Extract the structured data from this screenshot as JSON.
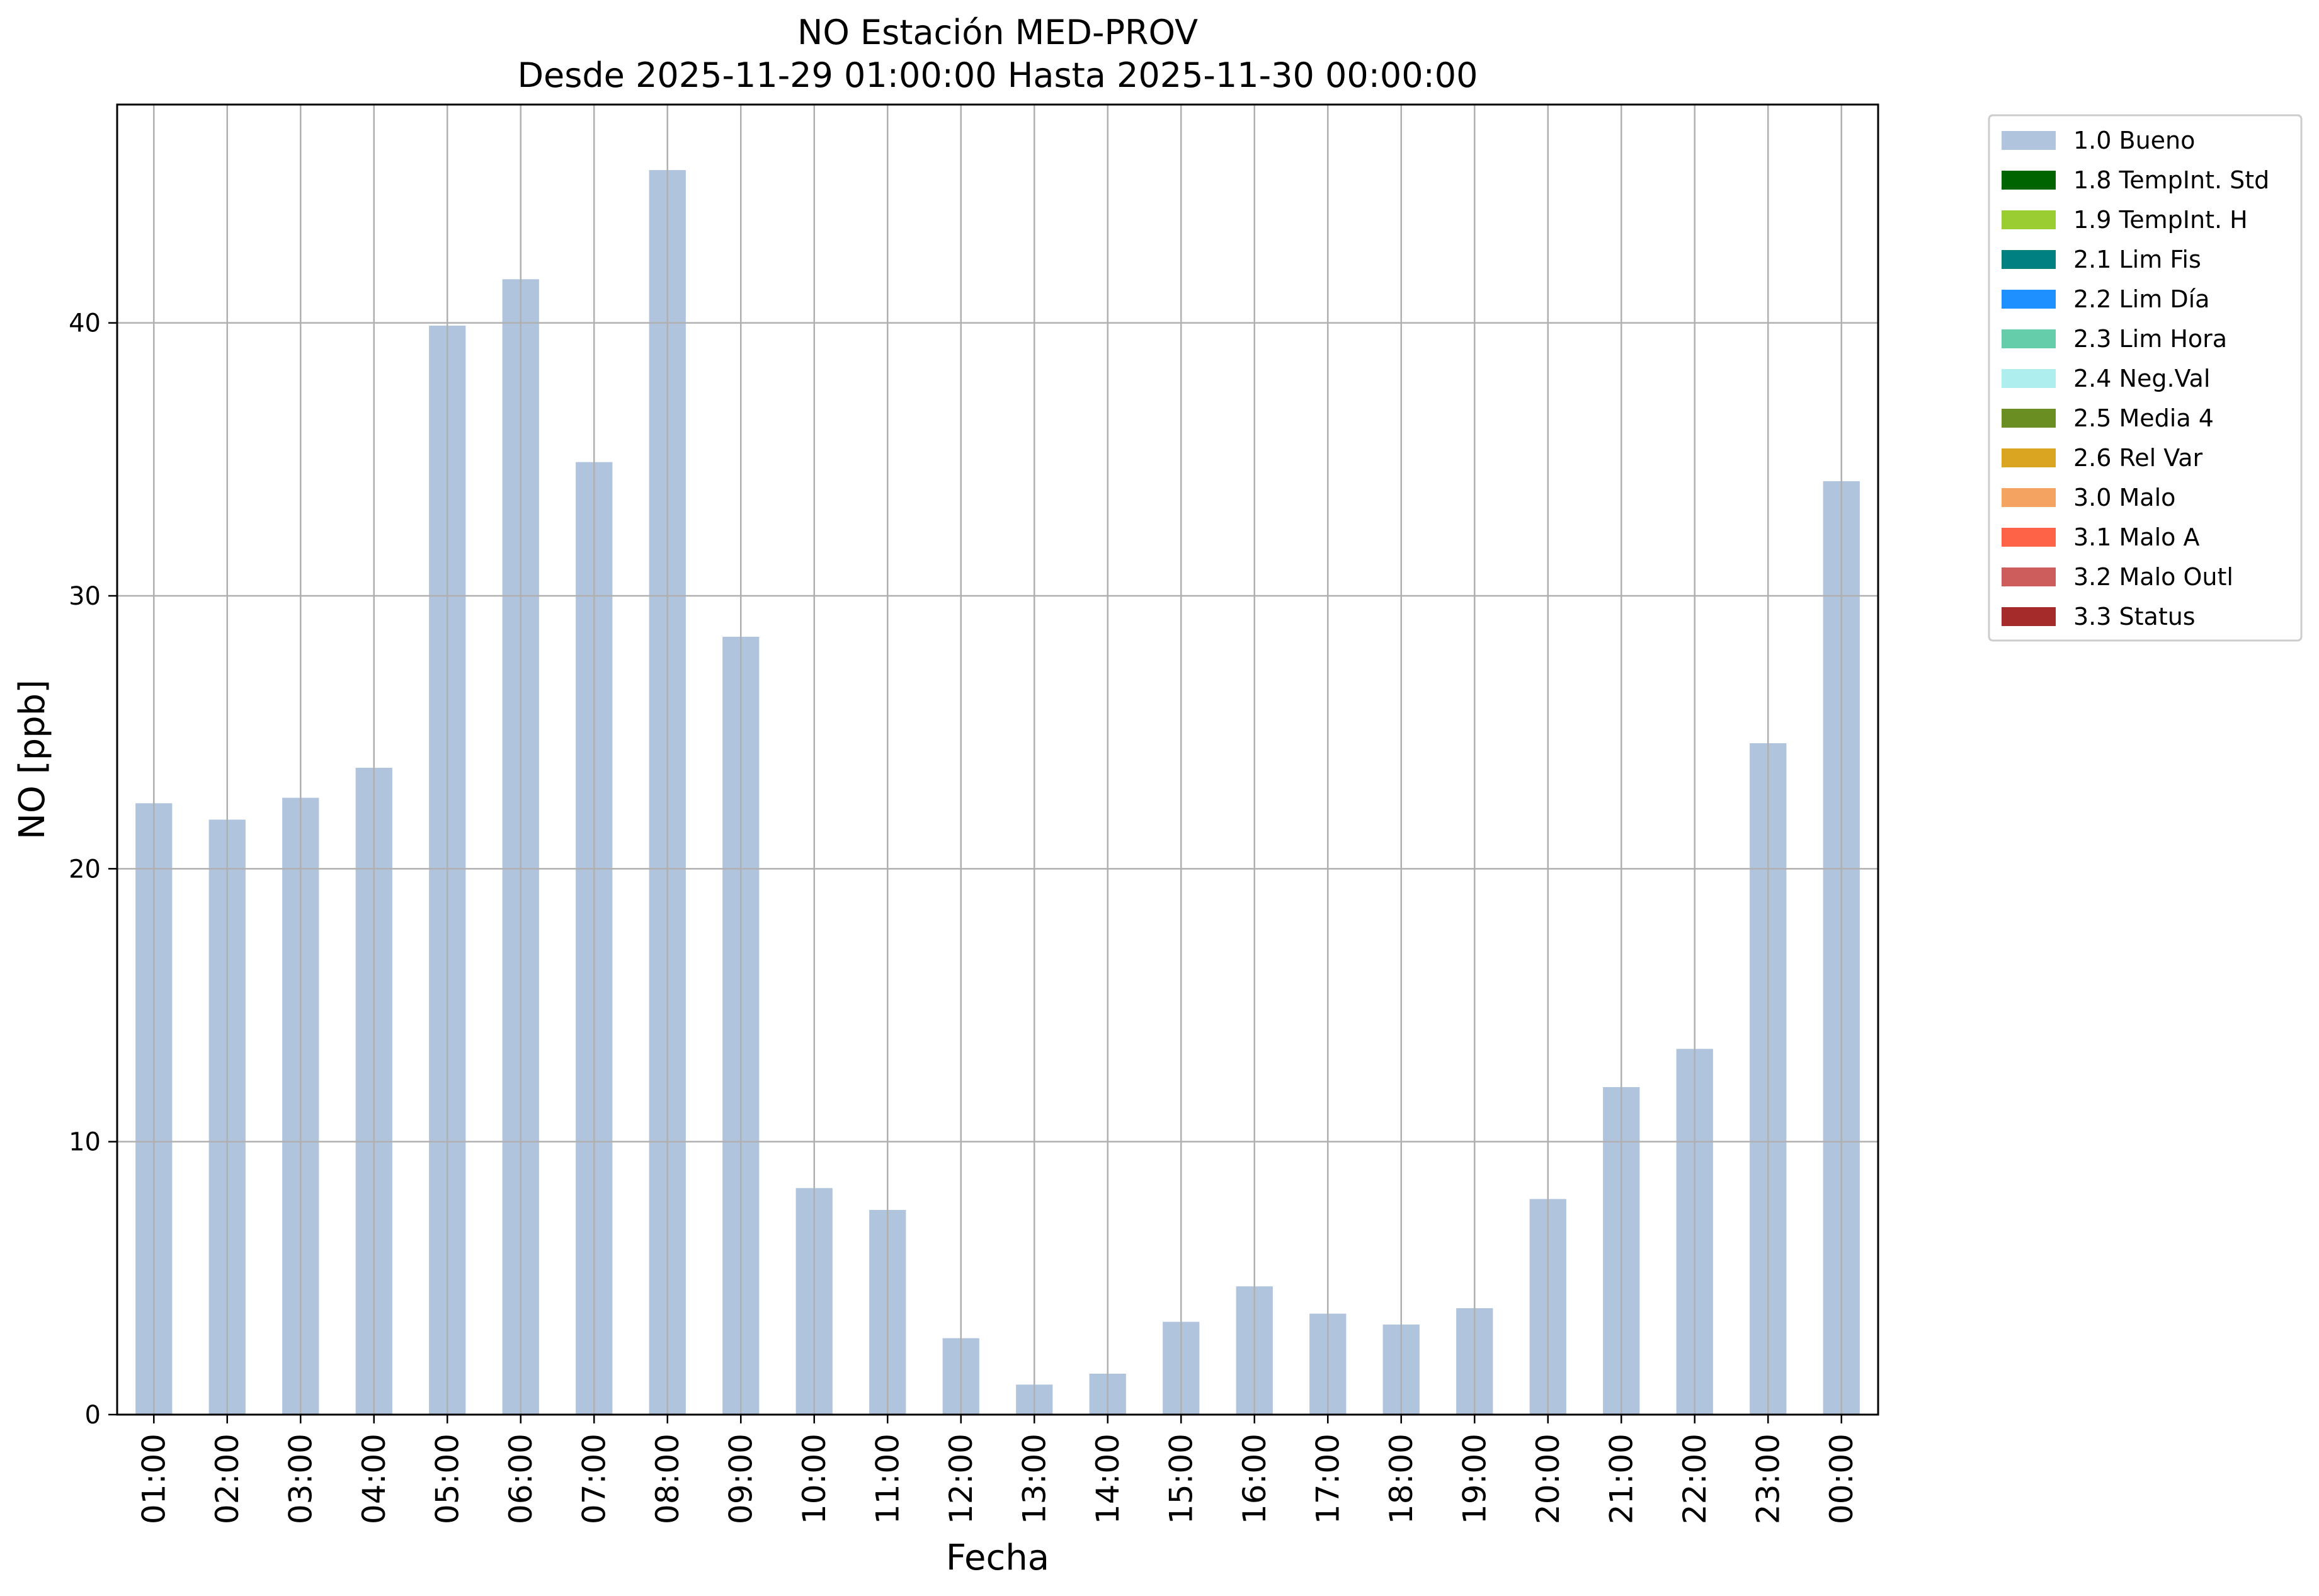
{
  "chart_data": {
    "type": "bar",
    "title": "NO Estación MED-PROV",
    "subtitle": "Desde 2025-11-29 01:00:00 Hasta 2025-11-30 00:00:00",
    "xlabel": "Fecha",
    "ylabel": "NO [ppb]",
    "ylim": [
      0,
      48
    ],
    "yticks": [
      0,
      10,
      20,
      30,
      40
    ],
    "grid": true,
    "legend_position": "outside-top-right",
    "categories": [
      "01:00",
      "02:00",
      "03:00",
      "04:00",
      "05:00",
      "06:00",
      "07:00",
      "08:00",
      "09:00",
      "10:00",
      "11:00",
      "12:00",
      "13:00",
      "14:00",
      "15:00",
      "16:00",
      "17:00",
      "18:00",
      "19:00",
      "20:00",
      "21:00",
      "22:00",
      "23:00",
      "00:00"
    ],
    "series": [
      {
        "name": "1.0 Bueno",
        "color": "#b0c4de",
        "values": [
          22.4,
          21.8,
          22.6,
          23.7,
          39.9,
          41.6,
          34.9,
          45.6,
          28.5,
          8.3,
          7.5,
          2.8,
          1.1,
          1.5,
          3.4,
          4.7,
          3.7,
          3.3,
          3.9,
          7.9,
          12.0,
          13.4,
          24.6,
          34.2
        ]
      }
    ],
    "legend": [
      {
        "label": "1.0 Bueno",
        "color": "#b0c4de"
      },
      {
        "label": "1.8 TempInt. Std",
        "color": "#006400"
      },
      {
        "label": "1.9 TempInt. H",
        "color": "#9acd32"
      },
      {
        "label": "2.1 Lim Fis",
        "color": "#008080"
      },
      {
        "label": "2.2 Lim Día",
        "color": "#1e90ff"
      },
      {
        "label": "2.3 Lim Hora",
        "color": "#66cdaa"
      },
      {
        "label": "2.4 Neg.Val",
        "color": "#afeeee"
      },
      {
        "label": "2.5 Media 4",
        "color": "#6b8e23"
      },
      {
        "label": "2.6 Rel Var",
        "color": "#daa520"
      },
      {
        "label": "3.0 Malo",
        "color": "#f4a460"
      },
      {
        "label": "3.1 Malo A",
        "color": "#ff6347"
      },
      {
        "label": "3.2 Malo Outl",
        "color": "#cd5c5c"
      },
      {
        "label": "3.3 Status",
        "color": "#a52a2a"
      }
    ]
  }
}
